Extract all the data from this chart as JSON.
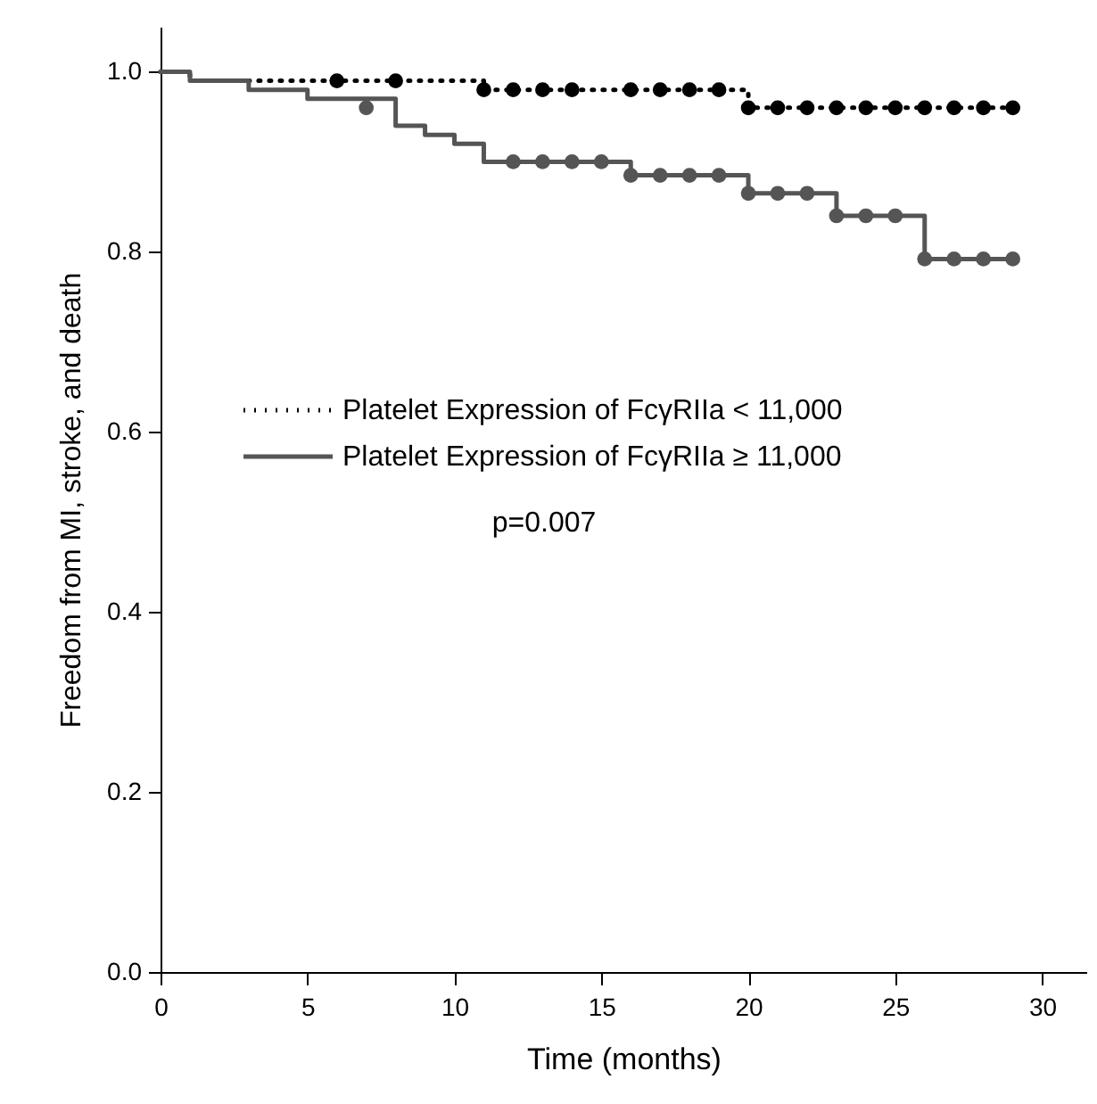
{
  "chart_data": {
    "type": "step",
    "xlabel": "Time (months)",
    "ylabel": "Freedom from MI, stroke, and death",
    "xlim": [
      0,
      31.5
    ],
    "ylim": [
      0,
      1.05
    ],
    "xticks": [
      0,
      5,
      10,
      15,
      20,
      25,
      30
    ],
    "yticks": [
      {
        "value": 0,
        "label": "0.0"
      },
      {
        "value": 0.2,
        "label": "0.2"
      },
      {
        "value": 0.4,
        "label": "0.4"
      },
      {
        "value": 0.6,
        "label": "0.6"
      },
      {
        "value": 0.8,
        "label": "0.8"
      },
      {
        "value": 1,
        "label": "1.0"
      }
    ],
    "grid": false,
    "legend": "left",
    "annotations": [
      "p=0.007"
    ],
    "series": [
      {
        "name": "Platelet Expression of FcγRIIa < 11,000",
        "color": "#000000",
        "line_style": "dotted",
        "marker": "none",
        "x": [
          0,
          1,
          11,
          20,
          29
        ],
        "values": [
          1,
          0.99,
          0.98,
          0.96,
          0.96
        ]
      },
      {
        "name": "Platelet Expression of FcγRIIa ≥ 11,000",
        "color": "#555555",
        "line_style": "solid",
        "marker": "none",
        "x": [
          0,
          1,
          3,
          5,
          8,
          9,
          10,
          11,
          16,
          20,
          23,
          26,
          29
        ],
        "values": [
          1,
          0.99,
          0.98,
          0.97,
          0.94,
          0.93,
          0.92,
          0.9,
          0.885,
          0.865,
          0.84,
          0.792,
          0.792
        ]
      },
      {
        "type": "scatter",
        "color": "#000000",
        "marker": "circle",
        "x": [
          6,
          8,
          11,
          12,
          13,
          14,
          16,
          17,
          18,
          19,
          20,
          21,
          22,
          23,
          24,
          25,
          26,
          27,
          28,
          29
        ],
        "values": [
          0.99,
          0.99,
          0.98,
          0.98,
          0.98,
          0.98,
          0.98,
          0.98,
          0.98,
          0.98,
          0.96,
          0.96,
          0.96,
          0.96,
          0.96,
          0.96,
          0.96,
          0.96,
          0.96,
          0.96
        ]
      },
      {
        "type": "scatter",
        "color": "#555555",
        "marker": "circle",
        "x": [
          7,
          12,
          13,
          14,
          15,
          16,
          17,
          18,
          19,
          20,
          21,
          22,
          23,
          24,
          25,
          26,
          27,
          28,
          29
        ],
        "values": [
          0.96,
          0.9,
          0.9,
          0.9,
          0.9,
          0.885,
          0.885,
          0.885,
          0.885,
          0.865,
          0.865,
          0.865,
          0.84,
          0.84,
          0.84,
          0.792,
          0.792,
          0.792,
          0.792
        ]
      }
    ]
  }
}
